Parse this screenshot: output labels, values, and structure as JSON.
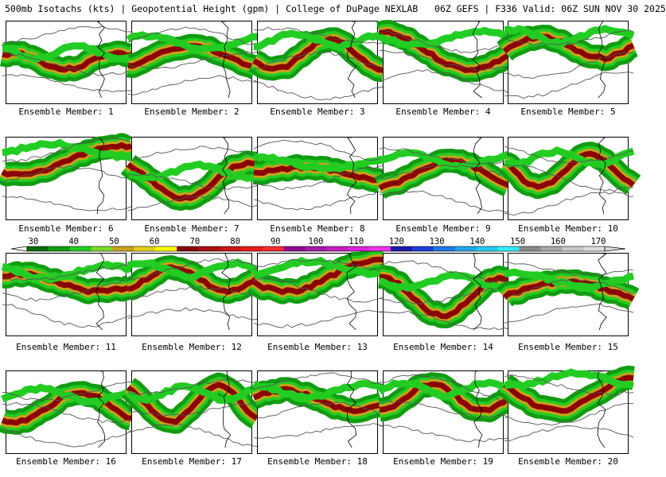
{
  "title": "500mb Isotachs (kts) | Geopotential Height (gpm) | College of DuPage NEXLAB   06Z GEFS | F336 Valid: 06Z SUN NOV 30 2025",
  "panels": [
    {
      "label": "Ensemble Member: 1"
    },
    {
      "label": "Ensemble Member: 2"
    },
    {
      "label": "Ensemble Member: 3"
    },
    {
      "label": "Ensemble Member: 4"
    },
    {
      "label": "Ensemble Member: 5"
    },
    {
      "label": "Ensemble Member: 6"
    },
    {
      "label": "Ensemble Member: 7"
    },
    {
      "label": "Ensemble Member: 8"
    },
    {
      "label": "Ensemble Member: 9"
    },
    {
      "label": "Ensemble Member: 10"
    },
    {
      "label": "Ensemble Member: 11"
    },
    {
      "label": "Ensemble Member: 12"
    },
    {
      "label": "Ensemble Member: 13"
    },
    {
      "label": "Ensemble Member: 14"
    },
    {
      "label": "Ensemble Member: 15"
    },
    {
      "label": "Ensemble Member: 16"
    },
    {
      "label": "Ensemble Member: 17"
    },
    {
      "label": "Ensemble Member: 18"
    },
    {
      "label": "Ensemble Member: 19"
    },
    {
      "label": "Ensemble Member: 20"
    }
  ],
  "colorbar": {
    "ticks": [
      "30",
      "40",
      "50",
      "60",
      "70",
      "80",
      "90",
      "100",
      "110",
      "120",
      "130",
      "140",
      "150",
      "160",
      "170"
    ],
    "colors": [
      "#0b6b0b",
      "#119c11",
      "#22cc22",
      "#7ddb2a",
      "#c9a21c",
      "#e8cf1a",
      "#ffff00",
      "#8b0000",
      "#a80f0f",
      "#c81414",
      "#e61a1a",
      "#ff2a2a",
      "#8f0a8f",
      "#a81aa8",
      "#c21ec2",
      "#dd22dd",
      "#ee33ee",
      "#1a1aa8",
      "#1e3ce0",
      "#1e78e6",
      "#22a6f0",
      "#22ccf5",
      "#33ecff",
      "#8a8a8a",
      "#a8a8a8",
      "#c8c8c8",
      "#dedede"
    ]
  }
}
